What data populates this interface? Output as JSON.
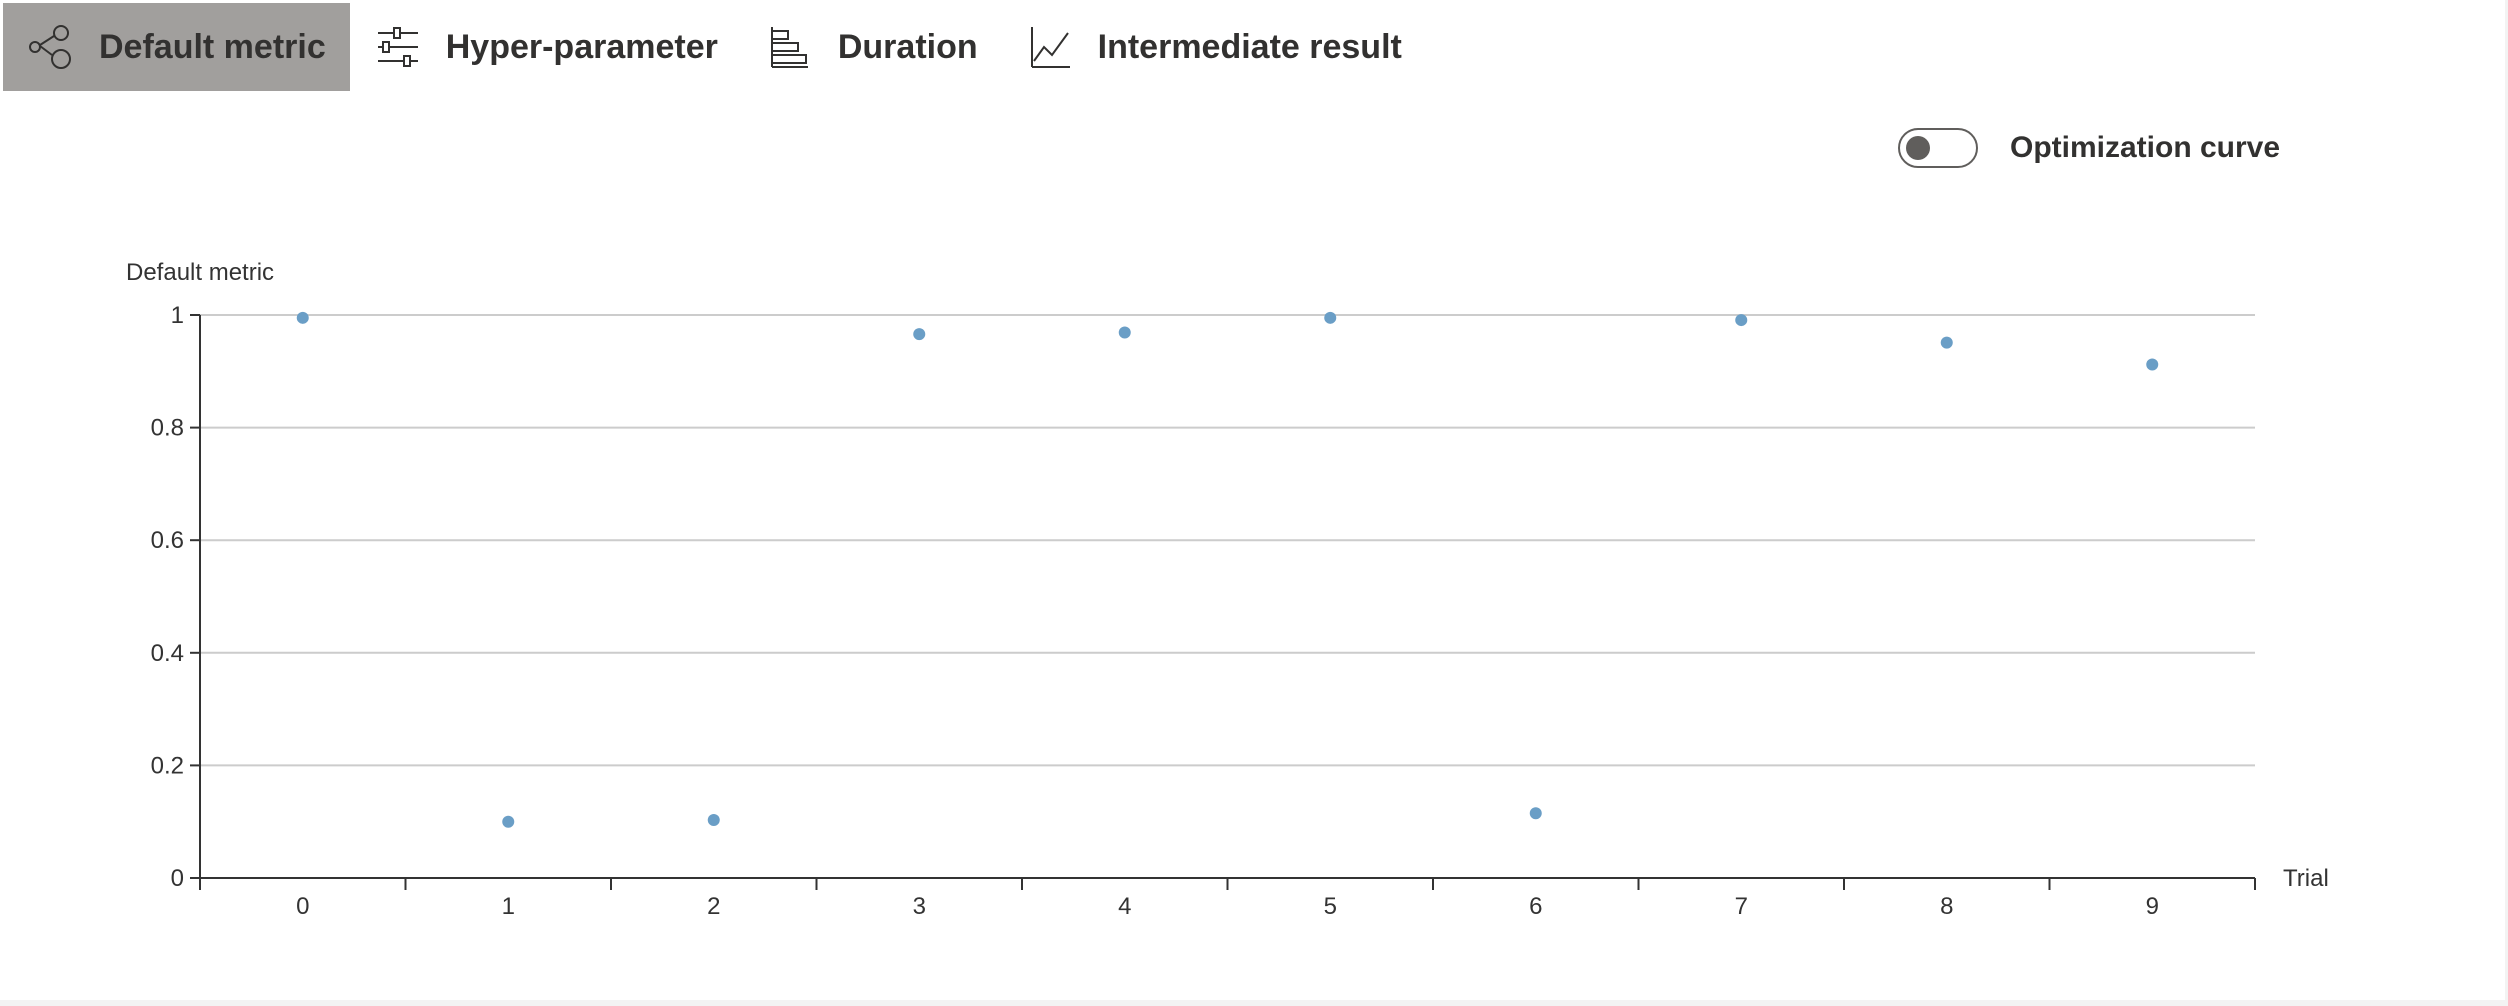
{
  "tabs": [
    {
      "label": "Default metric",
      "icon": "scatter-nodes-icon",
      "active": true
    },
    {
      "label": "Hyper-parameter",
      "icon": "sliders-icon",
      "active": false
    },
    {
      "label": "Duration",
      "icon": "bar-chart-horizontal-icon",
      "active": false
    },
    {
      "label": "Intermediate result",
      "icon": "line-chart-icon",
      "active": false
    }
  ],
  "toggle": {
    "label": "Optimization curve",
    "on": false
  },
  "chart_data": {
    "type": "scatter",
    "ylabel": "Default metric",
    "xlabel": "Trial",
    "categories": [
      "0",
      "1",
      "2",
      "3",
      "4",
      "5",
      "6",
      "7",
      "8",
      "9"
    ],
    "values": [
      0.995,
      0.1,
      0.103,
      0.966,
      0.969,
      0.995,
      0.115,
      0.991,
      0.951,
      0.912
    ],
    "ylim": [
      0,
      1
    ],
    "yticks": [
      "0",
      "0.2",
      "0.4",
      "0.6",
      "0.8",
      "1"
    ],
    "grid": true,
    "point_color": "#6a9ec6"
  }
}
